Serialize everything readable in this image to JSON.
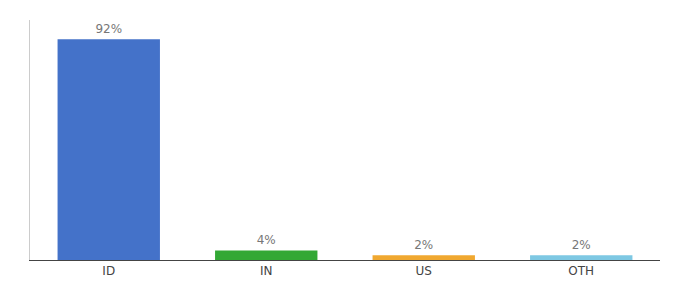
{
  "chart_data": {
    "type": "bar",
    "categories": [
      "ID",
      "IN",
      "US",
      "OTH"
    ],
    "values": [
      92,
      4,
      2,
      2
    ],
    "value_labels": [
      "92%",
      "4%",
      "2%",
      "2%"
    ],
    "colors": [
      "#4472c9",
      "#33a835",
      "#f0a830",
      "#7ec8e3"
    ],
    "ylim": [
      0,
      100
    ],
    "data_labels": true,
    "tick_labels": "x",
    "grid": false
  }
}
